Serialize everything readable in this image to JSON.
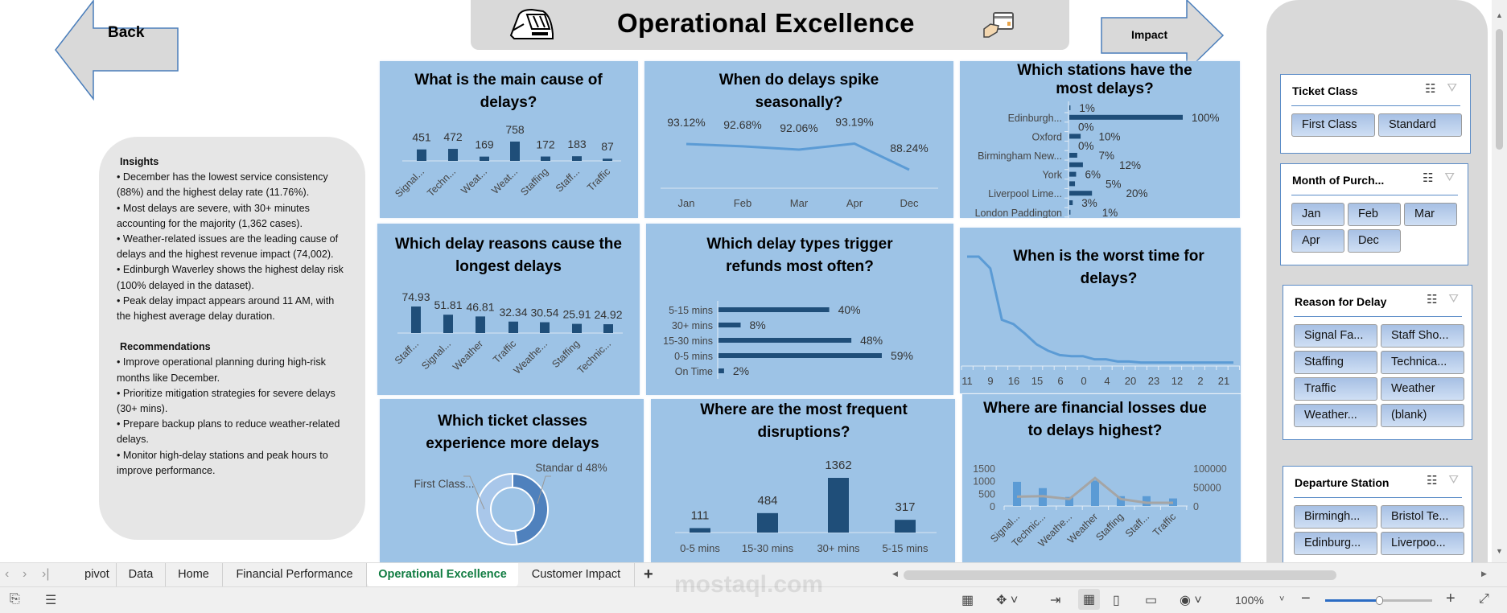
{
  "nav": {
    "back_label": "Back",
    "impact_label": "Impact"
  },
  "header": {
    "title": "Operational Excellence",
    "left_icon": "train-icon",
    "right_icon": "card-payment-icon"
  },
  "insights": {
    "heading": "Insights",
    "items": [
      "• December has the lowest service consistency (88%) and the highest delay rate (11.76%).",
      "• Most delays are severe, with 30+ minutes accounting for the majority (1,362 cases).",
      "• Weather-related issues are the leading cause of delays and the highest revenue impact (74,002).",
      "• Edinburgh Waverley shows the highest delay risk (100% delayed in the dataset).",
      "• Peak delay impact appears around 11 AM, with the highest average delay duration."
    ],
    "rec_heading": "Recommendations",
    "rec_items": [
      "• Improve operational planning during high-risk months like December.",
      "• Prioritize mitigation strategies for severe delays (30+ mins).",
      "• Prepare backup plans to reduce weather-related delays.",
      "• Monitor high-delay stations and peak hours to improve performance."
    ]
  },
  "chart_data": [
    {
      "type": "bar",
      "title": "What is the main cause of delays?",
      "categories": [
        "Signal...",
        "Techn...",
        "Weat...",
        "Weat...",
        "Staffing",
        "Staff...",
        "Traffic"
      ],
      "values": [
        451,
        472,
        169,
        758,
        172,
        183,
        87
      ]
    },
    {
      "type": "line",
      "title": "When do delays spike seasonally?",
      "categories": [
        "Jan",
        "Feb",
        "Mar",
        "Apr",
        "Dec"
      ],
      "values": [
        93.12,
        92.68,
        92.06,
        93.19,
        88.24
      ],
      "labels": [
        "93.12%",
        "92.68%",
        "92.06%",
        "93.19%",
        "88.24%"
      ]
    },
    {
      "type": "bar",
      "orientation": "horizontal",
      "title": "Which stations have the most delays?",
      "categories": [
        "",
        "Edinburgh...",
        "",
        "Oxford",
        "",
        "Birmingham New...",
        "",
        "York",
        "",
        "Liverpool Lime...",
        "",
        "London Paddington"
      ],
      "values": [
        1,
        100,
        0,
        10,
        0,
        7,
        12,
        6,
        5,
        20,
        3,
        1
      ],
      "labels": [
        "1%",
        "100%",
        "0%",
        "10%",
        "0%",
        "7%",
        "12%",
        "6%",
        "5%",
        "20%",
        "3%",
        "1%"
      ]
    },
    {
      "type": "bar",
      "title": "Which delay reasons cause the longest delays",
      "categories": [
        "Staff...",
        "Signal...",
        "Weather",
        "Traffic",
        "Weathe...",
        "Staffing",
        "Technic..."
      ],
      "values": [
        74.93,
        51.81,
        46.81,
        32.34,
        30.54,
        25.91,
        24.92
      ]
    },
    {
      "type": "bar",
      "orientation": "horizontal",
      "title": "Which delay types trigger refunds most often?",
      "categories": [
        "5-15 mins",
        "30+ mins",
        "15-30 mins",
        "0-5 mins",
        "On Time"
      ],
      "values": [
        40,
        8,
        48,
        59,
        2
      ],
      "labels": [
        "40%",
        "8%",
        "48%",
        "59%",
        "2%"
      ]
    },
    {
      "type": "line",
      "title": "When is the worst time for delays?",
      "x_tick_labels": [
        "11",
        "9",
        "16",
        "15",
        "6",
        "0",
        "4",
        "20",
        "23",
        "12",
        "2",
        "21"
      ],
      "values": [
        100,
        100,
        89,
        41,
        37,
        28,
        18,
        12,
        8,
        7,
        7,
        4,
        4,
        2,
        2,
        1,
        1,
        1,
        1,
        1,
        1,
        1,
        1,
        1
      ]
    },
    {
      "type": "pie",
      "donut": true,
      "title": "Which ticket classes experience more delays",
      "categories": [
        "First Class...",
        "Standard"
      ],
      "values": [
        52,
        48
      ],
      "labels": [
        "First Class...",
        "Standar d 48%"
      ],
      "colors": [
        "#a9c7ea",
        "#4f81bd"
      ]
    },
    {
      "type": "bar",
      "title": "Where are the most frequent disruptions?",
      "categories": [
        "0-5 mins",
        "15-30 mins",
        "30+ mins",
        "5-15 mins"
      ],
      "values": [
        111,
        484,
        1362,
        317
      ]
    },
    {
      "type": "bar+line",
      "title": "Where are financial losses due to delays highest?",
      "categories": [
        "Signal...",
        "Technic...",
        "Weathe...",
        "Weather",
        "Staffing",
        "Staff...",
        "Traffic"
      ],
      "bar_values": [
        960,
        710,
        360,
        1010,
        390,
        390,
        300
      ],
      "line_values": [
        24800,
        26000,
        18400,
        74002,
        18400,
        8500,
        8500
      ],
      "ylim_left": [
        0,
        1500
      ],
      "ylim_right": [
        0,
        100000
      ],
      "left_ticks": [
        "1500",
        "1000",
        "500",
        "0"
      ],
      "right_ticks": [
        "100000",
        "50000",
        "0"
      ]
    }
  ],
  "slicers": [
    {
      "title": "Ticket Class",
      "items": [
        "First Class",
        "Standard"
      ]
    },
    {
      "title": "Month of Purch...",
      "items": [
        "Jan",
        "Feb",
        "Mar",
        "Apr",
        "Dec"
      ]
    },
    {
      "title": "Reason for Delay",
      "items": [
        "Signal Fa...",
        "Staff Sho...",
        "Staffing",
        "Technica...",
        "Traffic",
        "Weather",
        "Weather...",
        "(blank)"
      ]
    },
    {
      "title": "Departure Station",
      "items": [
        "Birmingh...",
        "Bristol Te...",
        "Edinburg...",
        "Liverpoo..."
      ]
    }
  ],
  "tabs": [
    "pivot",
    "Data",
    "Home",
    "Financial Performance",
    "Operational Excellence",
    "Customer Impact"
  ],
  "active_tab": "Operational Excellence",
  "status": {
    "zoom": "100%",
    "zoom_level": 0.5
  },
  "watermark": "mostaql.com",
  "colors": {
    "card": "#9dc3e6",
    "bar": "#1f4e79",
    "line": "#5b9bd5",
    "active_tab": "#107c41",
    "slicer_border": "#5b8cc7",
    "gray_line": "#a5a5a5"
  }
}
